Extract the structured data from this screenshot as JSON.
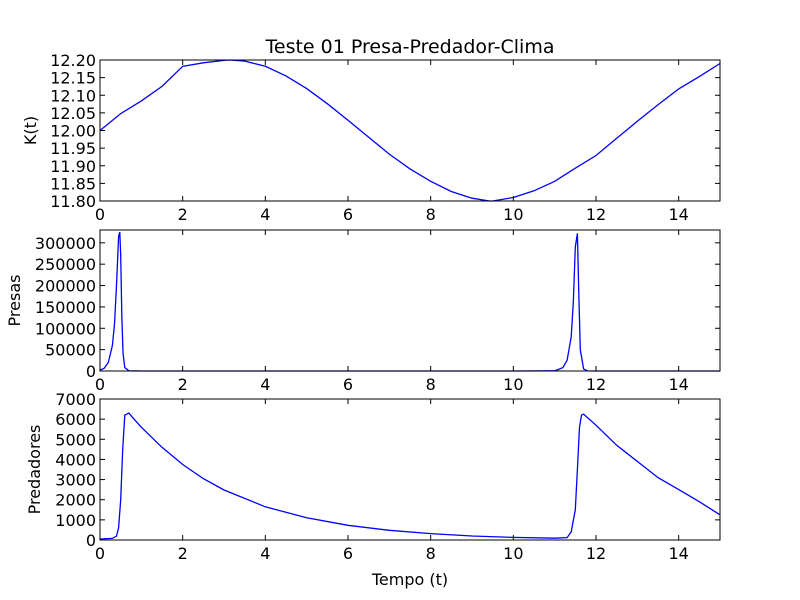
{
  "chart_data": [
    {
      "type": "line",
      "title": "Teste 01 Presa-Predador-Clima",
      "xlabel": "",
      "ylabel": "K(t)",
      "xlim": [
        0,
        15
      ],
      "ylim": [
        11.8,
        12.2
      ],
      "xticks": [
        0,
        2,
        4,
        6,
        8,
        10,
        12,
        14
      ],
      "xtick_labels": [
        "0",
        "2",
        "4",
        "6",
        "8",
        "10",
        "12",
        "14"
      ],
      "yticks": [
        11.8,
        11.85,
        11.9,
        11.95,
        12.0,
        12.05,
        12.1,
        12.15,
        12.2
      ],
      "ytick_labels": [
        "11.80",
        "11.85",
        "11.90",
        "11.95",
        "12.00",
        "12.05",
        "12.10",
        "12.15",
        "12.20"
      ],
      "grid": false,
      "color": "#0000ff",
      "series": [
        {
          "x": [
            0,
            0.5,
            1,
            1.5,
            2,
            2.5,
            3,
            3.14,
            3.5,
            4,
            4.5,
            5,
            5.5,
            6,
            6.5,
            7,
            7.5,
            8,
            8.5,
            9,
            9.42,
            9.5,
            10,
            10.5,
            11,
            11.5,
            12,
            12.5,
            13,
            13.5,
            14,
            14.5,
            15
          ],
          "values": [
            12.0,
            12.048,
            12.084,
            12.125,
            12.182,
            12.192,
            12.199,
            12.2,
            12.197,
            12.182,
            12.155,
            12.119,
            12.076,
            12.029,
            11.981,
            11.933,
            11.891,
            11.856,
            11.827,
            11.808,
            11.8,
            11.8,
            11.81,
            11.829,
            11.856,
            11.893,
            11.929,
            11.978,
            12.026,
            12.073,
            12.118,
            12.153,
            12.19
          ]
        }
      ]
    },
    {
      "type": "line",
      "xlabel": "",
      "ylabel": "Presas",
      "xlim": [
        0,
        15
      ],
      "ylim": [
        0,
        330000
      ],
      "xticks": [
        0,
        2,
        4,
        6,
        8,
        10,
        12,
        14
      ],
      "xtick_labels": [
        "0",
        "2",
        "4",
        "6",
        "8",
        "10",
        "12",
        "14"
      ],
      "yticks": [
        0,
        50000,
        100000,
        150000,
        200000,
        250000,
        300000
      ],
      "ytick_labels": [
        "0",
        "50000",
        "100000",
        "150000",
        "200000",
        "250000",
        "300000"
      ],
      "grid": false,
      "color": "#0000ff",
      "series": [
        {
          "x": [
            0,
            0.1,
            0.2,
            0.3,
            0.35,
            0.4,
            0.45,
            0.48,
            0.5,
            0.53,
            0.56,
            0.6,
            0.7,
            1,
            2,
            4,
            6,
            8,
            10,
            11,
            11.2,
            11.3,
            11.4,
            11.45,
            11.5,
            11.55,
            11.58,
            11.62,
            11.7,
            11.8,
            12,
            14,
            15
          ],
          "values": [
            2000,
            6000,
            20000,
            60000,
            110000,
            200000,
            315000,
            325000,
            270000,
            120000,
            40000,
            8000,
            500,
            0,
            0,
            0,
            0,
            0,
            0,
            500,
            8000,
            25000,
            80000,
            160000,
            290000,
            322000,
            200000,
            50000,
            5000,
            200,
            0,
            0,
            0
          ]
        }
      ]
    },
    {
      "type": "line",
      "xlabel": "Tempo (t)",
      "ylabel": "Predadores",
      "xlim": [
        0,
        15
      ],
      "ylim": [
        0,
        7000
      ],
      "xticks": [
        0,
        2,
        4,
        6,
        8,
        10,
        12,
        14
      ],
      "xtick_labels": [
        "0",
        "2",
        "4",
        "6",
        "8",
        "10",
        "12",
        "14"
      ],
      "yticks": [
        0,
        1000,
        2000,
        3000,
        4000,
        5000,
        6000,
        7000
      ],
      "ytick_labels": [
        "0",
        "1000",
        "2000",
        "3000",
        "4000",
        "5000",
        "6000",
        "7000"
      ],
      "grid": false,
      "color": "#0000ff",
      "series": [
        {
          "x": [
            0,
            0.3,
            0.4,
            0.45,
            0.5,
            0.55,
            0.6,
            0.7,
            0.8,
            1,
            1.5,
            2,
            2.5,
            3,
            4,
            5,
            6,
            7,
            8,
            9,
            10,
            11,
            11.3,
            11.4,
            11.5,
            11.55,
            11.6,
            11.65,
            11.7,
            12,
            12.5,
            13,
            13.5,
            14,
            14.5,
            15
          ],
          "values": [
            50,
            80,
            200,
            600,
            2000,
            4500,
            6200,
            6300,
            6050,
            5600,
            4600,
            3750,
            3050,
            2480,
            1650,
            1100,
            730,
            480,
            320,
            200,
            130,
            90,
            120,
            400,
            1500,
            3500,
            5600,
            6200,
            6250,
            5700,
            4700,
            3900,
            3100,
            2500,
            1900,
            1250
          ]
        }
      ]
    }
  ]
}
